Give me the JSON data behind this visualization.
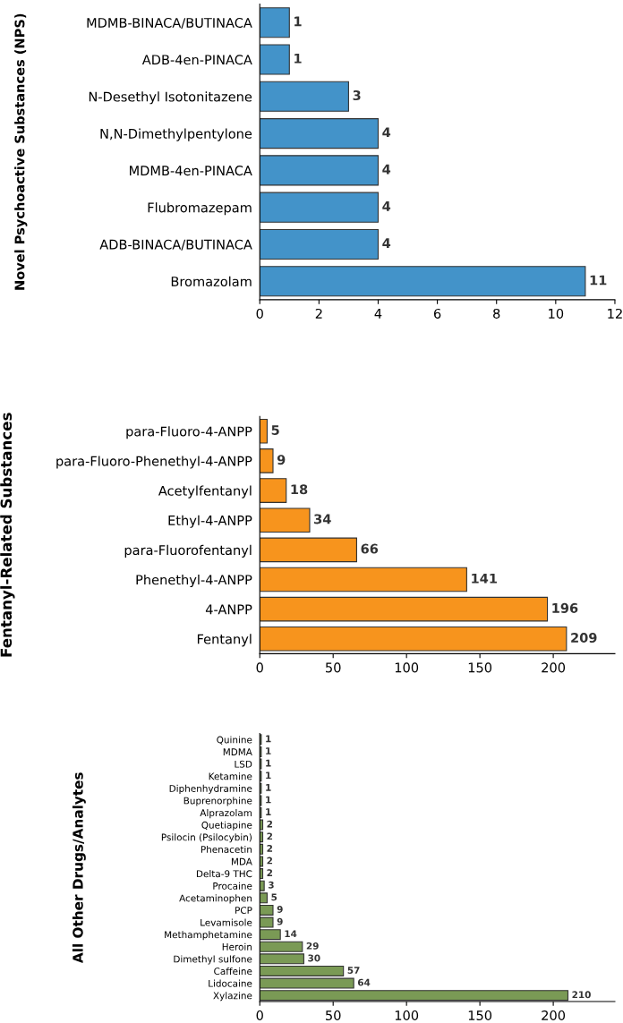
{
  "chart_data": [
    {
      "type": "bar",
      "orientation": "horizontal",
      "ylabel": "Novel Psychoactive Substances (NPS)",
      "categories": [
        "MDMB-BINACA/BUTINACA",
        "ADB-4en-PINACA",
        "N-Desethyl Isotonitazene",
        "N,N-Dimethylpentylone",
        "MDMB-4en-PINACA",
        "Flubromazepam",
        "ADB-BINACA/BUTINACA",
        "Bromazolam"
      ],
      "values": [
        1,
        1,
        3,
        4,
        4,
        4,
        4,
        11
      ],
      "color": "#4393c9",
      "xlim": [
        0,
        12
      ],
      "xticks": [
        0,
        2,
        4,
        6,
        8,
        10,
        12
      ],
      "data_labels": true
    },
    {
      "type": "bar",
      "orientation": "horizontal",
      "ylabel": "Fentanyl-Related Substances",
      "categories": [
        "para-Fluoro-4-ANPP",
        "para-Fluoro-Phenethyl-4-ANPP",
        "Acetylfentanyl",
        "Ethyl-4-ANPP",
        "para-Fluorofentanyl",
        "Phenethyl-4-ANPP",
        "4-ANPP",
        "Fentanyl"
      ],
      "values": [
        5,
        9,
        18,
        34,
        66,
        141,
        196,
        209
      ],
      "color": "#f7941d",
      "xlim": [
        0,
        242
      ],
      "xticks": [
        0,
        50,
        100,
        150,
        200
      ],
      "data_labels": true
    },
    {
      "type": "bar",
      "orientation": "horizontal",
      "ylabel": "All Other Drugs/Analytes",
      "categories": [
        "Quinine",
        "MDMA",
        "LSD",
        "Ketamine",
        "Diphenhydramine",
        "Buprenorphine",
        "Alprazolam",
        "Quetiapine",
        "Psilocin (Psilocybin)",
        "Phenacetin",
        "MDA",
        "Delta-9 THC",
        "Procaine",
        "Acetaminophen",
        "PCP",
        "Levamisole",
        "Methamphetamine",
        "Heroin",
        "Dimethyl sulfone",
        "Caffeine",
        "Lidocaine",
        "Xylazine"
      ],
      "values": [
        1,
        1,
        1,
        1,
        1,
        1,
        1,
        2,
        2,
        2,
        2,
        2,
        3,
        5,
        9,
        9,
        14,
        29,
        30,
        57,
        64,
        210
      ],
      "color": "#7a9a55",
      "xlim": [
        0,
        242
      ],
      "xticks": [
        0,
        50,
        100,
        150,
        200
      ],
      "data_labels": true
    }
  ]
}
